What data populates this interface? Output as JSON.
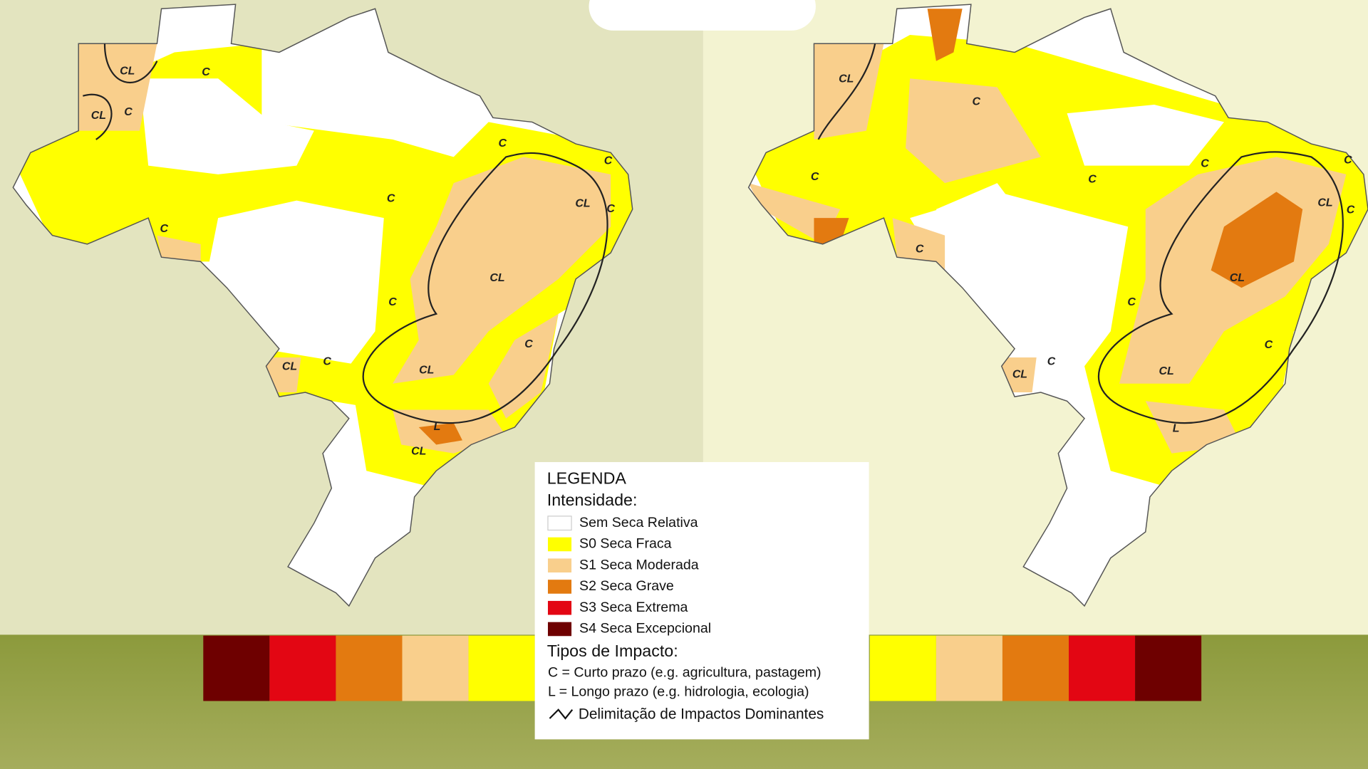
{
  "legend": {
    "title": "LEGENDA",
    "intensity_heading": "Intensidade:",
    "intensity": [
      {
        "label": "Sem Seca Relativa",
        "color": "#ffffff"
      },
      {
        "label": "S0 Seca Fraca",
        "color": "#ffff00"
      },
      {
        "label": "S1 Seca Moderada",
        "color": "#f9cf8c"
      },
      {
        "label": "S2 Seca Grave",
        "color": "#e37a10"
      },
      {
        "label": "S3 Seca Extrema",
        "color": "#e30613"
      },
      {
        "label": "S4 Seca Excepcional",
        "color": "#6e0000"
      }
    ],
    "impact_heading": "Tipos de Impacto:",
    "impact_types": [
      "C = Curto prazo (e.g. agricultura, pastagem)",
      "L = Longo prazo (e.g. hidrologia, ecologia)"
    ],
    "delimitation": "Delimitação de Impactos Dominantes"
  },
  "maps": [
    {
      "labels": [
        "CL",
        "C",
        "CL",
        "C",
        "C",
        "C",
        "C",
        "C",
        "CL",
        "C",
        "CL",
        "C",
        "C",
        "CL",
        "C",
        "CL",
        "L",
        "CL"
      ]
    },
    {
      "labels": [
        "CL",
        "C",
        "C",
        "C",
        "C",
        "C",
        "C",
        "CL",
        "C",
        "CL",
        "C",
        "C",
        "CL",
        "C",
        "CL",
        "L"
      ]
    }
  ]
}
